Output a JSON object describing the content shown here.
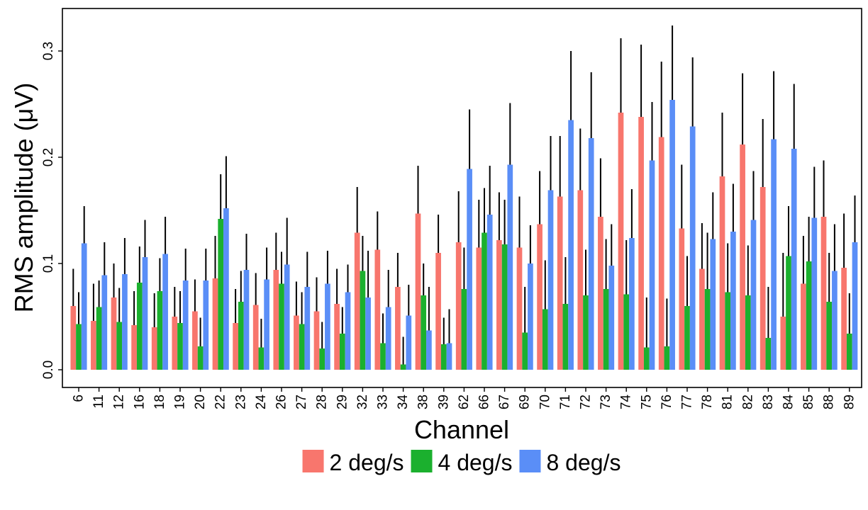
{
  "chart_data": {
    "type": "bar",
    "xlabel": "Channel",
    "ylabel": "RMS amplitude (μV)",
    "ylim": [
      0,
      0.34
    ],
    "yticks": [
      "0.0",
      "0.1",
      "0.2",
      "0.3"
    ],
    "legend_position": "bottom",
    "grid": false,
    "categories": [
      "6",
      "11",
      "12",
      "16",
      "18",
      "19",
      "20",
      "22",
      "23",
      "24",
      "26",
      "27",
      "28",
      "29",
      "32",
      "33",
      "34",
      "38",
      "39",
      "62",
      "66",
      "67",
      "69",
      "70",
      "71",
      "72",
      "73",
      "74",
      "75",
      "76",
      "77",
      "78",
      "81",
      "82",
      "83",
      "84",
      "85",
      "88",
      "89"
    ],
    "series": [
      {
        "name": "2 deg/s",
        "color": "#F8766D",
        "values": [
          0.06,
          0.046,
          0.068,
          0.042,
          0.04,
          0.05,
          0.055,
          0.086,
          0.044,
          0.061,
          0.094,
          0.051,
          0.055,
          0.062,
          0.129,
          0.113,
          0.078,
          0.147,
          0.11,
          0.12,
          0.115,
          0.122,
          0.115,
          0.137,
          0.163,
          0.169,
          0.144,
          0.242,
          0.238,
          0.219,
          0.133,
          0.095,
          0.182,
          0.212,
          0.172,
          0.05,
          0.081,
          0.144,
          0.096
        ],
        "errors": [
          0.035,
          0.035,
          0.032,
          0.032,
          0.032,
          0.028,
          0.03,
          0.04,
          0.032,
          0.03,
          0.035,
          0.032,
          0.032,
          0.033,
          0.043,
          0.036,
          0.032,
          0.045,
          0.036,
          0.048,
          0.045,
          0.045,
          0.048,
          0.05,
          0.057,
          0.058,
          0.055,
          0.07,
          0.068,
          0.071,
          0.06,
          0.043,
          0.06,
          0.067,
          0.064,
          0.06,
          0.045,
          0.053,
          0.051
        ]
      },
      {
        "name": "4 deg/s",
        "color": "#1BB02E",
        "values": [
          0.043,
          0.059,
          0.045,
          0.082,
          0.074,
          0.044,
          0.022,
          0.142,
          0.064,
          0.021,
          0.081,
          0.043,
          0.02,
          0.034,
          0.093,
          0.025,
          0.005,
          0.07,
          0.024,
          0.076,
          0.129,
          0.118,
          0.035,
          0.057,
          0.062,
          0.07,
          0.076,
          0.071,
          0.021,
          0.022,
          0.06,
          0.076,
          0.073,
          0.07,
          0.03,
          0.107,
          0.102,
          0.064,
          0.034
        ],
        "errors": [
          0.03,
          0.025,
          0.032,
          0.034,
          0.031,
          0.03,
          0.027,
          0.042,
          0.029,
          0.027,
          0.03,
          0.03,
          0.025,
          0.025,
          0.033,
          0.028,
          0.026,
          0.03,
          0.025,
          0.039,
          0.042,
          0.042,
          0.043,
          0.046,
          0.044,
          0.043,
          0.047,
          0.051,
          0.047,
          0.045,
          0.047,
          0.053,
          0.046,
          0.047,
          0.048,
          0.047,
          0.042,
          0.046,
          0.038
        ]
      },
      {
        "name": "8 deg/s",
        "color": "#5A8EF7",
        "values": [
          0.119,
          0.089,
          0.09,
          0.106,
          0.109,
          0.084,
          0.084,
          0.152,
          0.094,
          0.085,
          0.099,
          0.078,
          0.081,
          0.073,
          0.068,
          0.059,
          0.051,
          0.037,
          0.025,
          0.189,
          0.146,
          0.193,
          0.1,
          0.169,
          0.235,
          0.218,
          0.098,
          0.124,
          0.197,
          0.254,
          0.229,
          0.123,
          0.13,
          0.141,
          0.217,
          0.208,
          0.143,
          0.093,
          0.12
        ],
        "errors": [
          0.035,
          0.031,
          0.034,
          0.035,
          0.035,
          0.03,
          0.03,
          0.049,
          0.034,
          0.03,
          0.044,
          0.033,
          0.031,
          0.026,
          0.044,
          0.035,
          0.029,
          0.041,
          0.032,
          0.056,
          0.046,
          0.058,
          0.036,
          0.051,
          0.065,
          0.062,
          0.039,
          0.046,
          0.055,
          0.07,
          0.065,
          0.044,
          0.045,
          0.046,
          0.064,
          0.061,
          0.048,
          0.044,
          0.044
        ]
      }
    ]
  }
}
